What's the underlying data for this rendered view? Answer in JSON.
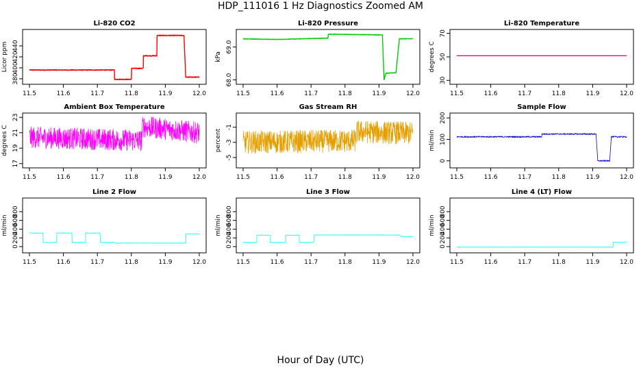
{
  "page": {
    "title": "HDP_111016  1 Hz Diagnostics Zoomed AM",
    "xlabel": "Hour of Day (UTC)"
  },
  "chart_data": [
    {
      "type": "line",
      "title": "Li-820 CO2",
      "ylabel": "Licor ppm",
      "color": "#ff0000",
      "xlim": [
        11.5,
        12.0
      ],
      "xticks": [
        11.5,
        11.6,
        11.7,
        11.8,
        11.9,
        12.0
      ],
      "xtick_labels": [
        "11.5",
        "11.6",
        "11.7",
        "11.8",
        "11.9",
        "12.0"
      ],
      "ylim": [
        375,
        465
      ],
      "yticks": [
        380,
        400,
        420,
        440
      ],
      "ytick_labels": [
        "380",
        "400",
        "420",
        "440"
      ],
      "noise": 0.8,
      "segments": [
        [
          11.5,
          396
        ],
        [
          11.75,
          396
        ],
        [
          11.75,
          379
        ],
        [
          11.8,
          379
        ],
        [
          11.8,
          399
        ],
        [
          11.835,
          399
        ],
        [
          11.835,
          422
        ],
        [
          11.875,
          422
        ],
        [
          11.875,
          459
        ],
        [
          11.955,
          459
        ],
        [
          11.96,
          383
        ],
        [
          12.0,
          383
        ]
      ]
    },
    {
      "type": "line",
      "title": "Li-820 Pressure",
      "ylabel": "kPa",
      "color": "#00cc00",
      "xlim": [
        11.5,
        12.0
      ],
      "xticks": [
        11.5,
        11.6,
        11.7,
        11.8,
        11.9,
        12.0
      ],
      "xtick_labels": [
        "11.5",
        "11.6",
        "11.7",
        "11.8",
        "11.9",
        "12.0"
      ],
      "ylim": [
        67.95,
        69.45
      ],
      "yticks": [
        68.0,
        69.0
      ],
      "ytick_labels": [
        "68.0",
        "69.0"
      ],
      "noise": 0.008,
      "segments": [
        [
          11.5,
          69.25
        ],
        [
          11.6,
          69.23
        ],
        [
          11.75,
          69.27
        ],
        [
          11.75,
          69.39
        ],
        [
          11.9,
          69.37
        ],
        [
          11.91,
          69.37
        ],
        [
          11.915,
          68.0
        ],
        [
          11.92,
          68.2
        ],
        [
          11.95,
          68.22
        ],
        [
          11.96,
          69.25
        ],
        [
          12.0,
          69.25
        ]
      ]
    },
    {
      "type": "line",
      "title": "Li-820 Temperature",
      "ylabel": "degrees C",
      "color": "#ff0080",
      "xlim": [
        11.5,
        12.0
      ],
      "xticks": [
        11.5,
        11.6,
        11.7,
        11.8,
        11.9,
        12.0
      ],
      "xtick_labels": [
        "11.5",
        "11.6",
        "11.7",
        "11.8",
        "11.9",
        "12.0"
      ],
      "ylim": [
        29,
        71
      ],
      "yticks": [
        30,
        50,
        70
      ],
      "ytick_labels": [
        "30",
        "50",
        "70"
      ],
      "noise": 0,
      "segments": [
        [
          11.5,
          51
        ],
        [
          12.0,
          51
        ]
      ]
    },
    {
      "type": "line",
      "title": "Ambient Box Temperature",
      "ylabel": "degrees C",
      "color": "#ff00ff",
      "xlim": [
        11.5,
        12.0
      ],
      "xticks": [
        11.5,
        11.6,
        11.7,
        11.8,
        11.9,
        12.0
      ],
      "xtick_labels": [
        "11.5",
        "11.6",
        "11.7",
        "11.8",
        "11.9",
        "12.0"
      ],
      "ylim": [
        16.8,
        23.2
      ],
      "yticks": [
        17,
        19,
        21,
        23
      ],
      "ytick_labels": [
        "17",
        "19",
        "21",
        "23"
      ],
      "noise": 1.4,
      "segments": [
        [
          11.5,
          20.4
        ],
        [
          11.83,
          20.0
        ],
        [
          11.833,
          21.8
        ],
        [
          12.0,
          21.0
        ]
      ]
    },
    {
      "type": "line",
      "title": "Gas Stream RH",
      "ylabel": "percent",
      "color": "#e69f00",
      "xlim": [
        11.5,
        12.0
      ],
      "xticks": [
        11.5,
        11.6,
        11.7,
        11.8,
        11.9,
        12.0
      ],
      "xtick_labels": [
        "11.5",
        "11.6",
        "11.7",
        "11.8",
        "11.9",
        "12.0"
      ],
      "ylim": [
        -6,
        0.5
      ],
      "yticks": [
        -5,
        -3,
        -1
      ],
      "ytick_labels": [
        "-5",
        "-3",
        "-1"
      ],
      "noise": 1.5,
      "segments": [
        [
          11.5,
          -3.0
        ],
        [
          11.83,
          -2.8
        ],
        [
          11.835,
          -1.6
        ],
        [
          12.0,
          -1.8
        ]
      ]
    },
    {
      "type": "line",
      "title": "Sample Flow",
      "ylabel": "ml/min",
      "color": "#0000cc",
      "xlim": [
        11.5,
        12.0
      ],
      "xticks": [
        11.5,
        11.6,
        11.7,
        11.8,
        11.9,
        12.0
      ],
      "xtick_labels": [
        "11.5",
        "11.6",
        "11.7",
        "11.8",
        "11.9",
        "12.0"
      ],
      "ylim": [
        -20,
        210
      ],
      "yticks": [
        0,
        100,
        200
      ],
      "ytick_labels": [
        "0",
        "100",
        "200"
      ],
      "noise": 3,
      "segments": [
        [
          11.5,
          112
        ],
        [
          11.75,
          112
        ],
        [
          11.75,
          125
        ],
        [
          11.91,
          125
        ],
        [
          11.915,
          0
        ],
        [
          11.95,
          0
        ],
        [
          11.955,
          112
        ],
        [
          12.0,
          112
        ]
      ]
    },
    {
      "type": "line",
      "title": "Line 2 Flow",
      "ylabel": "ml/min",
      "color": "#00ffff",
      "xlim": [
        11.5,
        12.0
      ],
      "xticks": [
        11.5,
        11.6,
        11.7,
        11.8,
        11.9,
        12.0
      ],
      "xtick_labels": [
        "11.5",
        "11.6",
        "11.7",
        "11.8",
        "11.9",
        "12.0"
      ],
      "ylim": [
        -80,
        1050
      ],
      "yticks": [
        0,
        200,
        400,
        600,
        800
      ],
      "ytick_labels": [
        "0",
        "200",
        "400",
        "600",
        "800"
      ],
      "noise": 5,
      "segments": [
        [
          11.5,
          310
        ],
        [
          11.54,
          310
        ],
        [
          11.54,
          95
        ],
        [
          11.58,
          95
        ],
        [
          11.58,
          310
        ],
        [
          11.625,
          310
        ],
        [
          11.625,
          95
        ],
        [
          11.665,
          95
        ],
        [
          11.665,
          310
        ],
        [
          11.708,
          310
        ],
        [
          11.708,
          95
        ],
        [
          11.75,
          95
        ],
        [
          11.75,
          80
        ],
        [
          11.96,
          80
        ],
        [
          11.96,
          290
        ],
        [
          12.0,
          290
        ]
      ]
    },
    {
      "type": "line",
      "title": "Line 3 Flow",
      "ylabel": "ml/min",
      "color": "#00ffff",
      "xlim": [
        11.5,
        12.0
      ],
      "xticks": [
        11.5,
        11.6,
        11.7,
        11.8,
        11.9,
        12.0
      ],
      "xtick_labels": [
        "11.5",
        "11.6",
        "11.7",
        "11.8",
        "11.9",
        "12.0"
      ],
      "ylim": [
        -80,
        1050
      ],
      "yticks": [
        0,
        200,
        400,
        600,
        800
      ],
      "ytick_labels": [
        "0",
        "200",
        "400",
        "600",
        "800"
      ],
      "noise": 5,
      "segments": [
        [
          11.5,
          95
        ],
        [
          11.54,
          95
        ],
        [
          11.54,
          260
        ],
        [
          11.58,
          260
        ],
        [
          11.58,
          95
        ],
        [
          11.625,
          95
        ],
        [
          11.625,
          260
        ],
        [
          11.665,
          260
        ],
        [
          11.665,
          95
        ],
        [
          11.708,
          95
        ],
        [
          11.708,
          265
        ],
        [
          11.96,
          265
        ],
        [
          11.965,
          230
        ],
        [
          12.0,
          230
        ]
      ]
    },
    {
      "type": "line",
      "title": "Line 4 (LT) Flow",
      "ylabel": "ml/min",
      "color": "#00ffff",
      "xlim": [
        11.5,
        12.0
      ],
      "xticks": [
        11.5,
        11.6,
        11.7,
        11.8,
        11.9,
        12.0
      ],
      "xtick_labels": [
        "11.5",
        "11.6",
        "11.7",
        "11.8",
        "11.9",
        "12.0"
      ],
      "ylim": [
        -80,
        1050
      ],
      "yticks": [
        0,
        200,
        400,
        600,
        800
      ],
      "ytick_labels": [
        "0",
        "200",
        "400",
        "600",
        "800"
      ],
      "noise": 4,
      "segments": [
        [
          11.5,
          -10
        ],
        [
          11.96,
          -10
        ],
        [
          11.96,
          100
        ],
        [
          12.0,
          100
        ]
      ]
    }
  ]
}
